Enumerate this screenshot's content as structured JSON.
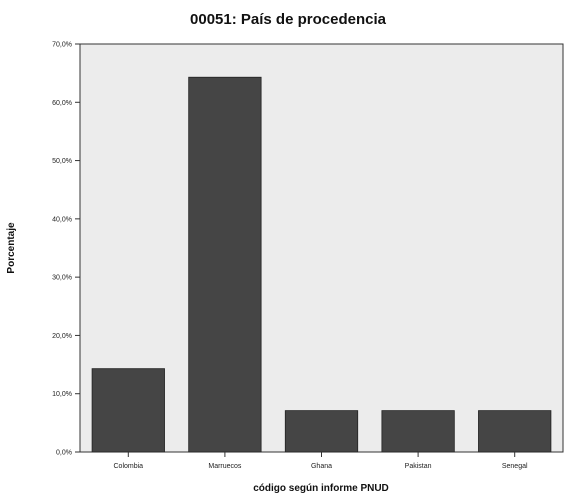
{
  "chart_data": {
    "type": "bar",
    "title": "00051: País de procedencia",
    "xlabel": "código según informe PNUD",
    "ylabel": "Porcentaje",
    "categories": [
      "Colombia",
      "Marruecos",
      "Ghana",
      "Pakistan",
      "Senegal"
    ],
    "values": [
      14.3,
      64.3,
      7.1,
      7.1,
      7.1
    ],
    "ylim": [
      0,
      70
    ],
    "yticks": [
      0,
      10,
      20,
      30,
      40,
      50,
      60,
      70
    ],
    "ytick_labels": [
      "0,0%",
      "10,0%",
      "20,0%",
      "30,0%",
      "40,0%",
      "50,0%",
      "60,0%",
      "70,0%"
    ],
    "grid": false,
    "legend": "none",
    "colors": {
      "bar": "#454545",
      "plot_background": "#ececec",
      "frame": "#333333"
    }
  }
}
